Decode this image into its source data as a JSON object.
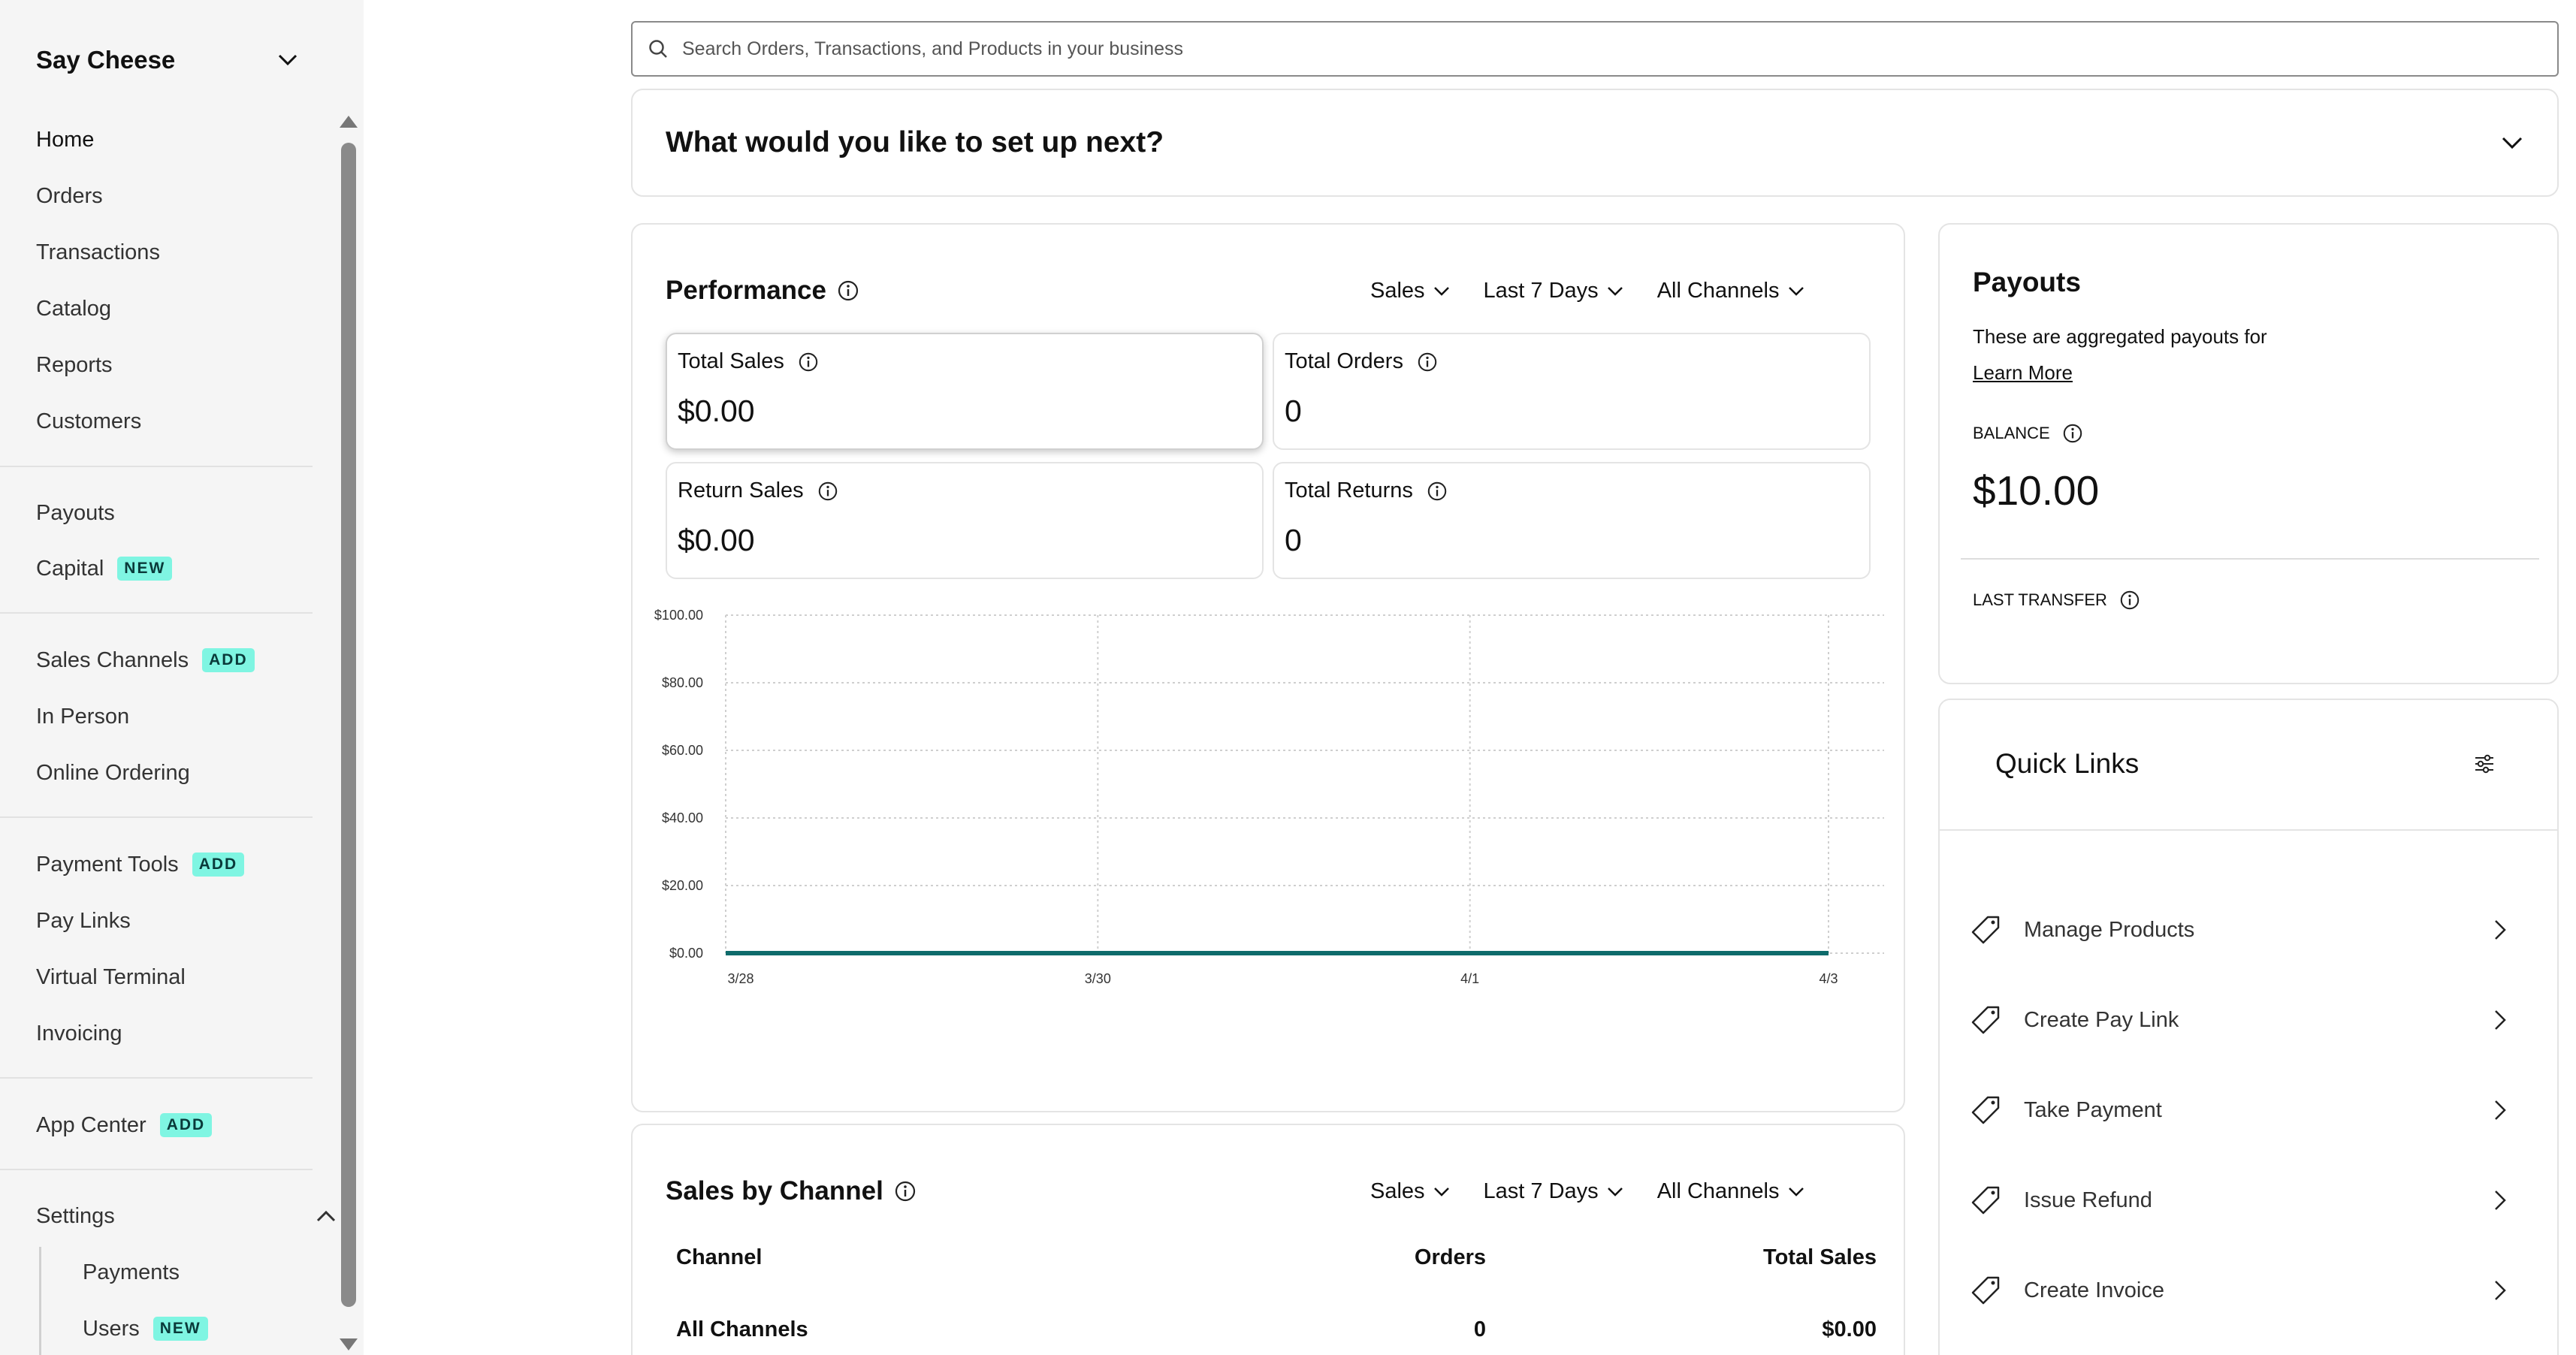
{
  "sidebar": {
    "business_name": "Say Cheese",
    "items": [
      {
        "label": "Home"
      },
      {
        "label": "Orders"
      },
      {
        "label": "Transactions"
      },
      {
        "label": "Catalog"
      },
      {
        "label": "Reports"
      },
      {
        "label": "Customers"
      },
      {
        "label": "Payouts"
      },
      {
        "label": "Capital",
        "badge": "NEW"
      },
      {
        "label": "Sales Channels",
        "badge": "ADD"
      },
      {
        "label": "In Person"
      },
      {
        "label": "Online Ordering"
      },
      {
        "label": "Payment Tools",
        "badge": "ADD"
      },
      {
        "label": "Pay Links"
      },
      {
        "label": "Virtual Terminal"
      },
      {
        "label": "Invoicing"
      },
      {
        "label": "App Center",
        "badge": "ADD"
      },
      {
        "label": "Settings"
      },
      {
        "label": "Payments"
      },
      {
        "label": "Users",
        "badge": "NEW"
      }
    ]
  },
  "search": {
    "placeholder": "Search Orders, Transactions, and Products in your business"
  },
  "setup": {
    "title": "What would you like to set up next?"
  },
  "performance": {
    "title": "Performance",
    "filters": {
      "metric": "Sales",
      "range": "Last 7 Days",
      "channel": "All Channels"
    },
    "metrics": [
      {
        "label": "Total Sales",
        "value": "$0.00"
      },
      {
        "label": "Total Orders",
        "value": "0"
      },
      {
        "label": "Return Sales",
        "value": "$0.00"
      },
      {
        "label": "Total Returns",
        "value": "0"
      }
    ]
  },
  "chart_data": {
    "type": "line",
    "x": [
      "3/28",
      "3/30",
      "4/1",
      "4/3"
    ],
    "y_ticks": [
      "$100.00",
      "$80.00",
      "$60.00",
      "$40.00",
      "$20.00",
      "$0.00"
    ],
    "ylim": [
      0,
      100
    ],
    "grid": true,
    "series": [
      {
        "name": "All Channels",
        "values": [
          0,
          0,
          0,
          0
        ],
        "color": "#0e6b6b"
      }
    ],
    "legend_position": "bottom-left"
  },
  "sales_by_channel": {
    "title": "Sales by Channel",
    "filters": {
      "metric": "Sales",
      "range": "Last 7 Days",
      "channel": "All Channels"
    },
    "columns": {
      "channel": "Channel",
      "orders": "Orders",
      "total": "Total Sales"
    },
    "rows": [
      {
        "channel": "All Channels",
        "orders": "0",
        "total": "$0.00"
      }
    ]
  },
  "payouts": {
    "title": "Payouts",
    "description": "These are aggregated payouts for",
    "learn_more": "Learn More",
    "balance_label": "BALANCE",
    "balance_value": "$10.00",
    "last_transfer_label": "LAST TRANSFER"
  },
  "quick_links": {
    "title": "Quick Links",
    "items": [
      {
        "label": "Manage Products"
      },
      {
        "label": "Create Pay Link"
      },
      {
        "label": "Take Payment"
      },
      {
        "label": "Issue Refund"
      },
      {
        "label": "Create Invoice"
      }
    ]
  },
  "colors": {
    "accent": "#0e6b6b",
    "badge": "#7ff5e2"
  }
}
